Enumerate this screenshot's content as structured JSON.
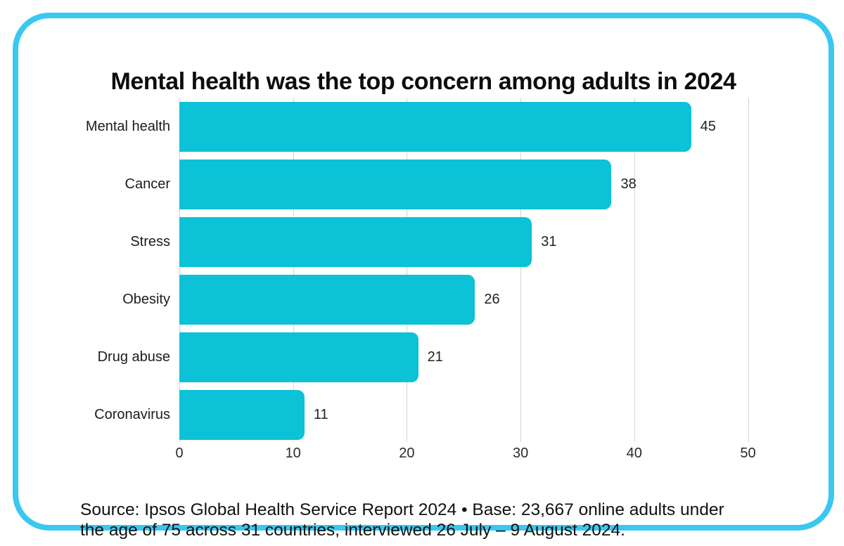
{
  "card": {
    "border_color": "#38c8f1"
  },
  "chart_data": {
    "type": "bar",
    "orientation": "horizontal",
    "title": "Mental health was the top concern among adults in 2024",
    "categories": [
      "Mental health",
      "Cancer",
      "Stress",
      "Obesity",
      "Drug abuse",
      "Coronavirus"
    ],
    "values": [
      45,
      38,
      31,
      26,
      21,
      11
    ],
    "x_ticks": [
      "0",
      "10",
      "20",
      "30",
      "40",
      "50"
    ],
    "x_tick_values": [
      0,
      10,
      20,
      30,
      40,
      50
    ],
    "xlim": [
      0,
      50
    ],
    "xlabel": "",
    "ylabel": "",
    "grid": "vertical",
    "value_label_position": "outside-end",
    "bar_color": "#0cc2d7",
    "gridline_color": "#d5d5d5",
    "legend": "none"
  },
  "source": {
    "line1": "Source: Ipsos Global Health Service Report 2024 • Base: 23,667 online adults under",
    "line2": "the age of 75 across 31 countries, interviewed 26 July – 9 August 2024."
  }
}
